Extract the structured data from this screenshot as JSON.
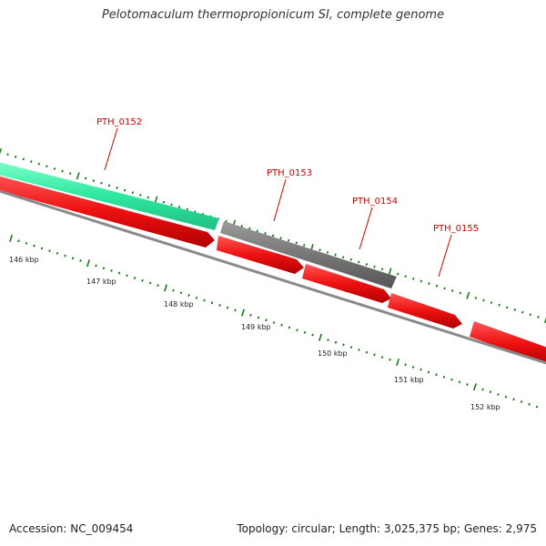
{
  "title": "Pelotomaculum thermopropionicum SI, complete genome",
  "footer": {
    "accession": "Accession: NC_009454",
    "topology": "Topology: circular; Length: 3,025,375 bp; Genes: 2,975"
  },
  "genes": [
    {
      "id": "PTH_0152",
      "label": "PTH_0152",
      "color": "#2ee8a0"
    },
    {
      "id": "PTH_0153",
      "label": "PTH_0153",
      "color": "#6e6e6e"
    },
    {
      "id": "PTH_0154",
      "label": "PTH_0154",
      "color": "#ee1111"
    },
    {
      "id": "PTH_0155",
      "label": "PTH_0155",
      "color": "#ee1111"
    }
  ],
  "kbp_labels": [
    "146 kbp",
    "147 kbp",
    "148 kbp",
    "149 kbp",
    "150 kbp",
    "151 kbp",
    "152 kbp"
  ],
  "colors": {
    "label_red": "#cc0000",
    "tick_green": "#1a7a1a",
    "backbone_gray": "#8a8a8a",
    "cds_red": "#ee1111",
    "cds_teal": "#2ee8a0",
    "cds_gray": "#6e6e6e"
  }
}
